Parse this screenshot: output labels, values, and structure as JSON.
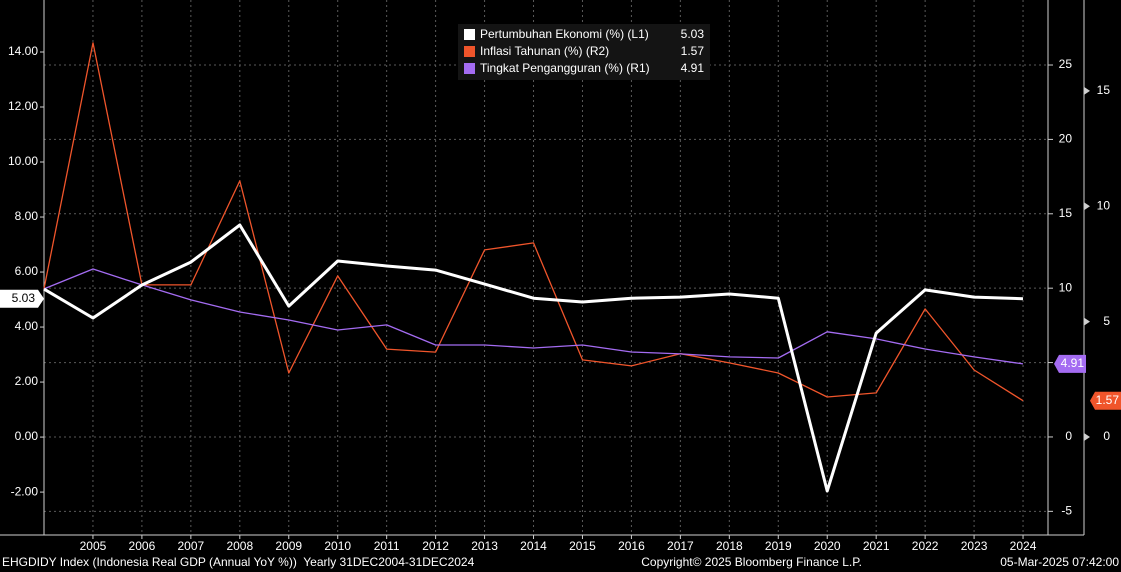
{
  "chart_data": {
    "type": "line",
    "x": [
      2004,
      2005,
      2006,
      2007,
      2008,
      2009,
      2010,
      2011,
      2012,
      2013,
      2014,
      2015,
      2016,
      2017,
      2018,
      2019,
      2020,
      2021,
      2022,
      2023,
      2024
    ],
    "xlim": [
      2004,
      2024.51
    ],
    "xticks": [
      2005,
      2006,
      2007,
      2008,
      2009,
      2010,
      2011,
      2012,
      2013,
      2014,
      2015,
      2016,
      2017,
      2018,
      2019,
      2020,
      2021,
      2022,
      2023,
      2024
    ],
    "ylim": [
      -3.56,
      15.89
    ],
    "yticks": [
      {
        "value": -2,
        "label": "-2.00"
      },
      {
        "value": 0,
        "label": "0.00"
      },
      {
        "value": 2,
        "label": "2.00"
      },
      {
        "value": 4,
        "label": "4.00"
      },
      {
        "value": 6,
        "label": "6.00"
      },
      {
        "value": 8,
        "label": "8.00"
      },
      {
        "value": 10,
        "label": "10.00"
      },
      {
        "value": 12,
        "label": "12.00"
      },
      {
        "value": 14,
        "label": "14.00"
      }
    ],
    "y2lim": [
      -6.59,
      29.37
    ],
    "y2ticks": [
      -5,
      0,
      5,
      10,
      15,
      20,
      25
    ],
    "y3lim": [
      -4.25,
      18.94
    ],
    "y3ticks": [
      0,
      5,
      10,
      15
    ],
    "grid": true,
    "legend": "top",
    "series": [
      {
        "name": "Pertumbuhan Ekonomi (%) (L1)",
        "color": "#ffffff",
        "axis": "y",
        "values": [
          5.38,
          4.33,
          5.53,
          6.36,
          7.71,
          4.76,
          6.4,
          6.22,
          6.07,
          5.56,
          5.05,
          4.91,
          5.05,
          5.09,
          5.2,
          5.05,
          -1.96,
          3.78,
          5.35,
          5.09,
          5.03
        ]
      },
      {
        "name": "Inflasi Tahunan (%) (R2)",
        "color": "#f0552b",
        "axis": "y3",
        "values": [
          6.42,
          17.08,
          6.59,
          6.59,
          11.1,
          2.77,
          6.98,
          3.81,
          3.68,
          8.11,
          8.41,
          3.34,
          3.08,
          3.61,
          3.21,
          2.77,
          1.73,
          1.91,
          5.55,
          2.9,
          1.57
        ]
      },
      {
        "name": "Tingkat Pengangguran (%) (R1)",
        "color": "#a46cf2",
        "axis": "y2",
        "values": [
          9.95,
          11.29,
          10.22,
          9.21,
          8.4,
          7.86,
          7.19,
          7.53,
          6.18,
          6.18,
          5.98,
          6.18,
          5.71,
          5.58,
          5.38,
          5.31,
          7.07,
          6.59,
          5.91,
          5.38,
          4.91
        ]
      }
    ],
    "footer": {
      "index": "EHGDIDY Index (Indonesia Real GDP (Annual YoY %))  Yearly 31DEC2004-31DEC2024",
      "copyright": "Copyright© 2025 Bloomberg Finance L.P.",
      "timestamp": "05-Mar-2025 07:42:00"
    }
  }
}
